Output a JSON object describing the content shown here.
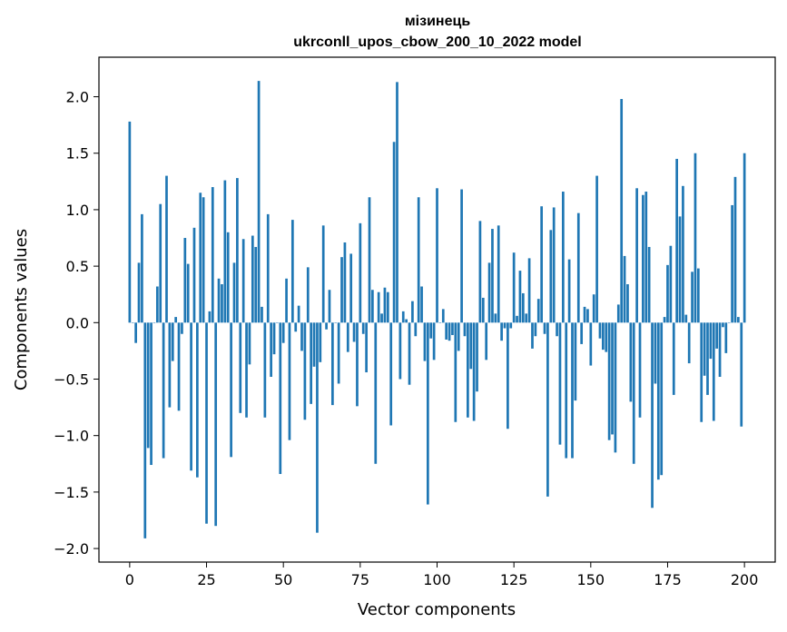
{
  "chart_data": {
    "type": "bar",
    "title": "мізинець",
    "subtitle": "ukrconll_upos_cbow_200_10_2022 model",
    "xlabel": "Vector components",
    "ylabel": "Components values",
    "xlim": [
      -10,
      210
    ],
    "ylim": [
      -2.12,
      2.35
    ],
    "xticks": [
      0,
      25,
      50,
      75,
      100,
      125,
      150,
      175,
      200
    ],
    "yticks": [
      -2.0,
      -1.5,
      -1.0,
      -0.5,
      0.0,
      0.5,
      1.0,
      1.5,
      2.0
    ],
    "ytick_labels": [
      "−2.0",
      "−1.5",
      "−1.0",
      "−0.5",
      "0.0",
      "0.5",
      "1.0",
      "1.5",
      "2.0"
    ],
    "bar_color": "#1f77b4",
    "grid": false,
    "values": [
      1.78,
      0.0,
      -0.18,
      0.53,
      0.96,
      -1.91,
      -1.11,
      -1.26,
      0.0,
      0.32,
      1.05,
      -1.2,
      1.3,
      -0.75,
      -0.34,
      0.05,
      -0.78,
      -0.1,
      0.75,
      0.52,
      -1.31,
      0.84,
      -1.37,
      1.15,
      1.11,
      -1.78,
      0.1,
      1.2,
      -1.8,
      0.39,
      0.34,
      1.26,
      0.8,
      -1.19,
      0.53,
      1.28,
      -0.8,
      0.74,
      -0.84,
      -0.37,
      0.77,
      0.67,
      2.14,
      0.14,
      -0.84,
      0.96,
      -0.48,
      -0.28,
      0.0,
      -1.34,
      -0.18,
      0.39,
      -1.04,
      0.91,
      -0.08,
      0.15,
      -0.25,
      -0.86,
      0.49,
      -0.72,
      -0.39,
      -1.86,
      -0.35,
      0.86,
      -0.06,
      0.29,
      -0.73,
      0.0,
      -0.54,
      0.58,
      0.71,
      -0.26,
      0.61,
      -0.17,
      -0.74,
      0.88,
      -0.1,
      -0.44,
      1.11,
      0.29,
      -1.25,
      0.27,
      0.08,
      0.31,
      0.27,
      -0.91,
      1.6,
      2.13,
      -0.5,
      0.1,
      0.03,
      -0.55,
      0.19,
      -0.12,
      1.11,
      0.32,
      -0.34,
      -1.61,
      -0.14,
      -0.33,
      1.19,
      0.0,
      0.12,
      -0.15,
      -0.16,
      -0.11,
      -0.88,
      -0.25,
      1.18,
      -0.12,
      -0.84,
      -0.41,
      -0.87,
      -0.61,
      0.9,
      0.22,
      -0.33,
      0.53,
      0.83,
      0.08,
      0.86,
      -0.16,
      -0.05,
      -0.94,
      -0.05,
      0.62,
      0.06,
      0.46,
      0.26,
      0.08,
      0.57,
      -0.23,
      -0.12,
      0.21,
      1.03,
      -0.1,
      -1.54,
      0.82,
      1.02,
      -0.12,
      -1.08,
      1.16,
      -1.2,
      0.56,
      -1.2,
      -0.69,
      0.97,
      -0.19,
      0.14,
      0.12,
      -0.38,
      0.25,
      1.3,
      -0.14,
      -0.24,
      -0.26,
      -1.04,
      -0.99,
      -1.15,
      0.16,
      1.98,
      0.59,
      0.34,
      -0.7,
      -1.25,
      1.19,
      -0.84,
      1.13,
      1.16,
      0.67,
      -1.64,
      -0.54,
      -1.39,
      -1.35,
      0.05,
      0.51,
      0.68,
      -0.64,
      1.45,
      0.94,
      1.21,
      0.07,
      -0.36,
      0.45,
      1.5,
      0.48,
      -0.88,
      -0.47,
      -0.64,
      -0.32,
      -0.87,
      -0.23,
      -0.48,
      -0.04,
      -0.27,
      0.0,
      1.04,
      1.29,
      0.05,
      -0.92,
      1.5
    ]
  }
}
